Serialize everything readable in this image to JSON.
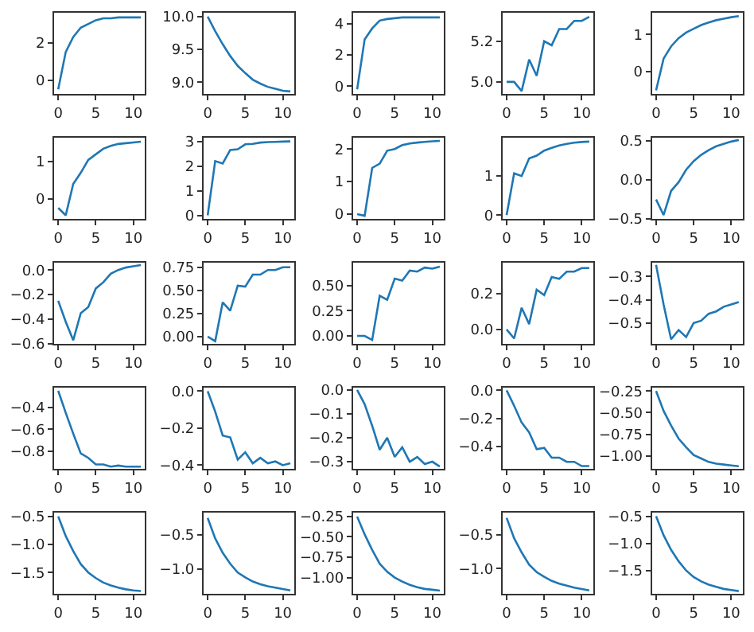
{
  "chart_data": [
    {
      "type": "line",
      "color": "#1f77b4",
      "x": [
        0,
        1,
        2,
        3,
        4,
        5,
        6,
        7,
        8,
        9,
        10,
        11
      ],
      "values": [
        -0.5,
        1.5,
        2.3,
        2.8,
        3.0,
        3.2,
        3.3,
        3.3,
        3.35,
        3.35,
        3.35,
        3.35
      ],
      "xlim": [
        -0.55,
        11.55
      ],
      "xticks": [
        0,
        5,
        10
      ],
      "ylim": [
        -0.75,
        3.6
      ],
      "yticks": [
        0,
        2
      ]
    },
    {
      "type": "line",
      "color": "#1f77b4",
      "x": [
        0,
        1,
        2,
        3,
        4,
        5,
        6,
        7,
        8,
        9,
        10,
        11
      ],
      "values": [
        10.0,
        9.78,
        9.58,
        9.4,
        9.25,
        9.14,
        9.04,
        8.98,
        8.93,
        8.9,
        8.87,
        8.86
      ],
      "xlim": [
        -0.55,
        11.55
      ],
      "xticks": [
        0,
        5,
        10
      ],
      "ylim": [
        8.82,
        10.06
      ],
      "yticks": [
        {
          "value": 9,
          "label": "9.0"
        },
        9.5,
        {
          "value": 10,
          "label": "10.0"
        }
      ]
    },
    {
      "type": "line",
      "color": "#1f77b4",
      "x": [
        0,
        1,
        2,
        3,
        4,
        5,
        6,
        7,
        8,
        9,
        10,
        11
      ],
      "values": [
        -0.2,
        3.0,
        3.7,
        4.2,
        4.3,
        4.35,
        4.4,
        4.4,
        4.4,
        4.4,
        4.4,
        4.4
      ],
      "xlim": [
        -0.55,
        11.55
      ],
      "xticks": [
        0,
        5,
        10
      ],
      "ylim": [
        -0.5,
        4.7
      ],
      "yticks": [
        0,
        2,
        4
      ]
    },
    {
      "type": "line",
      "color": "#1f77b4",
      "x": [
        0,
        1,
        2,
        3,
        4,
        5,
        6,
        7,
        8,
        9,
        10,
        11
      ],
      "values": [
        5.0,
        5.0,
        4.955,
        5.11,
        5.03,
        5.2,
        5.18,
        5.26,
        5.26,
        5.3,
        5.3,
        5.32
      ],
      "xlim": [
        -0.55,
        11.55
      ],
      "xticks": [
        0,
        5,
        10
      ],
      "ylim": [
        4.94,
        5.34
      ],
      "yticks": [
        {
          "value": 5,
          "label": "5.0"
        },
        5.2
      ]
    },
    {
      "type": "line",
      "color": "#1f77b4",
      "x": [
        0,
        1,
        2,
        3,
        4,
        5,
        6,
        7,
        8,
        9,
        10,
        11
      ],
      "values": [
        -0.5,
        0.35,
        0.68,
        0.9,
        1.05,
        1.15,
        1.25,
        1.32,
        1.38,
        1.42,
        1.46,
        1.49
      ],
      "xlim": [
        -0.55,
        11.55
      ],
      "xticks": [
        0,
        5,
        10
      ],
      "ylim": [
        -0.6,
        1.58
      ],
      "yticks": [
        0,
        1
      ]
    },
    {
      "type": "line",
      "color": "#1f77b4",
      "x": [
        0,
        1,
        2,
        3,
        4,
        5,
        6,
        7,
        8,
        9,
        10,
        11
      ],
      "values": [
        -0.25,
        -0.45,
        0.4,
        0.7,
        1.05,
        1.2,
        1.35,
        1.43,
        1.48,
        1.5,
        1.52,
        1.54
      ],
      "xlim": [
        -0.55,
        11.55
      ],
      "xticks": [
        0,
        5,
        10
      ],
      "ylim": [
        -0.55,
        1.65
      ],
      "yticks": [
        0,
        1
      ]
    },
    {
      "type": "line",
      "color": "#1f77b4",
      "x": [
        0,
        1,
        2,
        3,
        4,
        5,
        6,
        7,
        8,
        9,
        10,
        11
      ],
      "values": [
        0,
        2.2,
        2.1,
        2.65,
        2.68,
        2.88,
        2.9,
        2.95,
        2.97,
        2.98,
        2.99,
        3.0
      ],
      "xlim": [
        -0.55,
        11.55
      ],
      "xticks": [
        0,
        5,
        10
      ],
      "ylim": [
        -0.15,
        3.15
      ],
      "yticks": [
        0,
        1,
        2,
        3
      ]
    },
    {
      "type": "line",
      "color": "#1f77b4",
      "x": [
        0,
        1,
        2,
        3,
        4,
        5,
        6,
        7,
        8,
        9,
        10,
        11
      ],
      "values": [
        0,
        -0.05,
        1.42,
        1.55,
        1.95,
        2.0,
        2.12,
        2.17,
        2.2,
        2.22,
        2.24,
        2.25
      ],
      "xlim": [
        -0.55,
        11.55
      ],
      "xticks": [
        0,
        5,
        10
      ],
      "ylim": [
        -0.15,
        2.35
      ],
      "yticks": [
        0,
        1,
        2
      ]
    },
    {
      "type": "line",
      "color": "#1f77b4",
      "x": [
        0,
        1,
        2,
        3,
        4,
        5,
        6,
        7,
        8,
        9,
        10,
        11
      ],
      "values": [
        0,
        1.07,
        1.0,
        1.45,
        1.52,
        1.65,
        1.72,
        1.78,
        1.82,
        1.85,
        1.87,
        1.88
      ],
      "xlim": [
        -0.55,
        11.55
      ],
      "xticks": [
        0,
        5,
        10
      ],
      "ylim": [
        -0.1,
        1.98
      ],
      "yticks": [
        0,
        1
      ]
    },
    {
      "type": "line",
      "color": "#1f77b4",
      "x": [
        0,
        1,
        2,
        3,
        4,
        5,
        6,
        7,
        8,
        9,
        10,
        11
      ],
      "values": [
        -0.25,
        -0.45,
        -0.14,
        -0.03,
        0.13,
        0.24,
        0.32,
        0.38,
        0.43,
        0.46,
        0.49,
        0.51
      ],
      "xlim": [
        -0.55,
        11.55
      ],
      "xticks": [
        0,
        5,
        10
      ],
      "ylim": [
        -0.5,
        0.54
      ],
      "yticks": [
        -0.5,
        {
          "value": 0,
          "label": "0.0"
        },
        0.5
      ]
    },
    {
      "type": "line",
      "color": "#1f77b4",
      "x": [
        0,
        1,
        2,
        3,
        4,
        5,
        6,
        7,
        8,
        9,
        10,
        11
      ],
      "values": [
        -0.25,
        -0.42,
        -0.57,
        -0.35,
        -0.3,
        -0.15,
        -0.1,
        -0.03,
        0.0,
        0.02,
        0.03,
        0.04
      ],
      "xlim": [
        -0.55,
        11.55
      ],
      "xticks": [
        0,
        5,
        10
      ],
      "ylim": [
        -0.6,
        0.06
      ],
      "yticks": [
        -0.6,
        -0.4,
        -0.2,
        {
          "value": 0,
          "label": "0.0"
        }
      ]
    },
    {
      "type": "line",
      "color": "#1f77b4",
      "x": [
        0,
        1,
        2,
        3,
        4,
        5,
        6,
        7,
        8,
        9,
        10,
        11
      ],
      "values": [
        0,
        -0.05,
        0.37,
        0.28,
        0.55,
        0.54,
        0.67,
        0.67,
        0.72,
        0.72,
        0.75,
        0.75
      ],
      "xlim": [
        -0.55,
        11.55
      ],
      "xticks": [
        0,
        5,
        10
      ],
      "ylim": [
        -0.08,
        0.8
      ],
      "yticks": [
        {
          "value": 0,
          "label": "0.00"
        },
        {
          "value": 0.25,
          "label": "0.25"
        },
        {
          "value": 0.5,
          "label": "0.50"
        },
        {
          "value": 0.75,
          "label": "0.75"
        }
      ]
    },
    {
      "type": "line",
      "color": "#1f77b4",
      "x": [
        0,
        1,
        2,
        3,
        4,
        5,
        6,
        7,
        8,
        9,
        10,
        11
      ],
      "values": [
        0,
        0,
        -0.04,
        0.4,
        0.36,
        0.57,
        0.55,
        0.65,
        0.64,
        0.68,
        0.67,
        0.69
      ],
      "xlim": [
        -0.55,
        11.55
      ],
      "xticks": [
        0,
        5,
        10
      ],
      "ylim": [
        -0.08,
        0.73
      ],
      "yticks": [
        {
          "value": 0,
          "label": "0.00"
        },
        {
          "value": 0.25,
          "label": "0.25"
        },
        {
          "value": 0.5,
          "label": "0.50"
        }
      ]
    },
    {
      "type": "line",
      "color": "#1f77b4",
      "x": [
        0,
        1,
        2,
        3,
        4,
        5,
        6,
        7,
        8,
        9,
        10,
        11
      ],
      "values": [
        0,
        -0.05,
        0.12,
        0.03,
        0.22,
        0.19,
        0.29,
        0.28,
        0.32,
        0.32,
        0.34,
        0.34
      ],
      "xlim": [
        -0.55,
        11.55
      ],
      "xticks": [
        0,
        5,
        10
      ],
      "ylim": [
        -0.08,
        0.37
      ],
      "yticks": [
        {
          "value": 0,
          "label": "0.0"
        },
        0.2
      ]
    },
    {
      "type": "line",
      "color": "#1f77b4",
      "x": [
        0,
        1,
        2,
        3,
        4,
        5,
        6,
        7,
        8,
        9,
        10,
        11
      ],
      "values": [
        -0.25,
        -0.42,
        -0.57,
        -0.53,
        -0.56,
        -0.5,
        -0.49,
        -0.46,
        -0.45,
        -0.43,
        -0.42,
        -0.41
      ],
      "xlim": [
        -0.55,
        11.55
      ],
      "xticks": [
        0,
        5,
        10
      ],
      "ylim": [
        -0.59,
        -0.24
      ],
      "yticks": [
        -0.5,
        -0.4,
        -0.3
      ]
    },
    {
      "type": "line",
      "color": "#1f77b4",
      "x": [
        0,
        1,
        2,
        3,
        4,
        5,
        6,
        7,
        8,
        9,
        10,
        11
      ],
      "values": [
        -0.25,
        -0.45,
        -0.64,
        -0.82,
        -0.86,
        -0.92,
        -0.92,
        -0.94,
        -0.93,
        -0.94,
        -0.94,
        -0.94
      ],
      "xlim": [
        -0.55,
        11.55
      ],
      "xticks": [
        0,
        5,
        10
      ],
      "ylim": [
        -0.96,
        -0.22
      ],
      "yticks": [
        -0.8,
        -0.6,
        -0.4
      ]
    },
    {
      "type": "line",
      "color": "#1f77b4",
      "x": [
        0,
        1,
        2,
        3,
        4,
        5,
        6,
        7,
        8,
        9,
        10,
        11
      ],
      "values": [
        0,
        -0.11,
        -0.24,
        -0.25,
        -0.37,
        -0.33,
        -0.39,
        -0.36,
        -0.39,
        -0.38,
        -0.4,
        -0.39
      ],
      "xlim": [
        -0.55,
        11.55
      ],
      "xticks": [
        0,
        5,
        10
      ],
      "ylim": [
        -0.42,
        0.02
      ],
      "yticks": [
        -0.4,
        -0.2,
        {
          "value": 0,
          "label": "0.0"
        }
      ]
    },
    {
      "type": "line",
      "color": "#1f77b4",
      "x": [
        0,
        1,
        2,
        3,
        4,
        5,
        6,
        7,
        8,
        9,
        10,
        11
      ],
      "values": [
        0,
        -0.06,
        -0.15,
        -0.25,
        -0.2,
        -0.28,
        -0.24,
        -0.3,
        -0.28,
        -0.31,
        -0.3,
        -0.32
      ],
      "xlim": [
        -0.55,
        11.55
      ],
      "xticks": [
        0,
        5,
        10
      ],
      "ylim": [
        -0.33,
        0.01
      ],
      "yticks": [
        -0.3,
        -0.2,
        -0.1,
        {
          "value": 0,
          "label": "0.0"
        }
      ]
    },
    {
      "type": "line",
      "color": "#1f77b4",
      "x": [
        0,
        1,
        2,
        3,
        4,
        5,
        6,
        7,
        8,
        9,
        10,
        11
      ],
      "values": [
        0,
        -0.11,
        -0.23,
        -0.3,
        -0.42,
        -0.41,
        -0.48,
        -0.48,
        -0.51,
        -0.51,
        -0.54,
        -0.54
      ],
      "xlim": [
        -0.55,
        11.55
      ],
      "xticks": [
        0,
        5,
        10
      ],
      "ylim": [
        -0.56,
        0.02
      ],
      "yticks": [
        -0.4,
        -0.2,
        {
          "value": 0,
          "label": "0.0"
        }
      ]
    },
    {
      "type": "line",
      "color": "#1f77b4",
      "x": [
        0,
        1,
        2,
        3,
        4,
        5,
        6,
        7,
        8,
        9,
        10,
        11
      ],
      "values": [
        -0.25,
        -0.48,
        -0.65,
        -0.8,
        -0.9,
        -0.99,
        -1.03,
        -1.07,
        -1.09,
        -1.1,
        -1.11,
        -1.12
      ],
      "xlim": [
        -0.55,
        11.55
      ],
      "xticks": [
        0,
        5,
        10
      ],
      "ylim": [
        -1.15,
        -0.21
      ],
      "yticks": [
        {
          "value": -1.0,
          "label": "−1.00"
        },
        {
          "value": -0.75,
          "label": "−0.75"
        },
        {
          "value": -0.5,
          "label": "−0.50"
        },
        {
          "value": -0.25,
          "label": "−0.25"
        }
      ]
    },
    {
      "type": "line",
      "color": "#1f77b4",
      "x": [
        0,
        1,
        2,
        3,
        4,
        5,
        6,
        7,
        8,
        9,
        10,
        11
      ],
      "values": [
        -0.5,
        -0.85,
        -1.12,
        -1.35,
        -1.5,
        -1.6,
        -1.68,
        -1.73,
        -1.77,
        -1.8,
        -1.82,
        -1.83
      ],
      "xlim": [
        -0.55,
        11.55
      ],
      "xticks": [
        0,
        5,
        10
      ],
      "ylim": [
        -1.88,
        -0.43
      ],
      "yticks": [
        -1.5,
        {
          "value": -1,
          "label": "−1.0"
        },
        -0.5
      ]
    },
    {
      "type": "line",
      "color": "#1f77b4",
      "x": [
        0,
        1,
        2,
        3,
        4,
        5,
        6,
        7,
        8,
        9,
        10,
        11
      ],
      "values": [
        -0.25,
        -0.55,
        -0.76,
        -0.92,
        -1.05,
        -1.12,
        -1.18,
        -1.22,
        -1.25,
        -1.27,
        -1.29,
        -1.31
      ],
      "xlim": [
        -0.55,
        11.55
      ],
      "xticks": [
        0,
        5,
        10
      ],
      "ylim": [
        -1.36,
        -0.17
      ],
      "yticks": [
        {
          "value": -1,
          "label": "−1.0"
        },
        -0.5
      ]
    },
    {
      "type": "line",
      "color": "#1f77b4",
      "x": [
        0,
        1,
        2,
        3,
        4,
        5,
        6,
        7,
        8,
        9,
        10,
        11
      ],
      "values": [
        -0.25,
        -0.47,
        -0.66,
        -0.83,
        -0.93,
        -1.0,
        -1.05,
        -1.09,
        -1.12,
        -1.14,
        -1.15,
        -1.16
      ],
      "xlim": [
        -0.55,
        11.55
      ],
      "xticks": [
        0,
        5,
        10
      ],
      "ylim": [
        -1.2,
        -0.2
      ],
      "yticks": [
        {
          "value": -1.0,
          "label": "−1.00"
        },
        {
          "value": -0.75,
          "label": "−0.75"
        },
        {
          "value": -0.5,
          "label": "−0.50"
        },
        {
          "value": -0.25,
          "label": "−0.25"
        }
      ]
    },
    {
      "type": "line",
      "color": "#1f77b4",
      "x": [
        0,
        1,
        2,
        3,
        4,
        5,
        6,
        7,
        8,
        9,
        10,
        11
      ],
      "values": [
        -0.25,
        -0.55,
        -0.76,
        -0.94,
        -1.05,
        -1.12,
        -1.18,
        -1.22,
        -1.25,
        -1.28,
        -1.3,
        -1.32
      ],
      "xlim": [
        -0.55,
        11.55
      ],
      "xticks": [
        0,
        5,
        10
      ],
      "ylim": [
        -1.37,
        -0.17
      ],
      "yticks": [
        {
          "value": -1,
          "label": "−1.0"
        },
        -0.5
      ]
    },
    {
      "type": "line",
      "color": "#1f77b4",
      "x": [
        0,
        1,
        2,
        3,
        4,
        5,
        6,
        7,
        8,
        9,
        10,
        11
      ],
      "values": [
        -0.5,
        -0.85,
        -1.12,
        -1.33,
        -1.5,
        -1.62,
        -1.7,
        -1.76,
        -1.8,
        -1.84,
        -1.86,
        -1.88
      ],
      "xlim": [
        -0.55,
        11.55
      ],
      "xticks": [
        0,
        5,
        10
      ],
      "ylim": [
        -1.93,
        -0.43
      ],
      "yticks": [
        -1.5,
        {
          "value": -1,
          "label": "−1.0"
        },
        -0.5
      ]
    }
  ]
}
